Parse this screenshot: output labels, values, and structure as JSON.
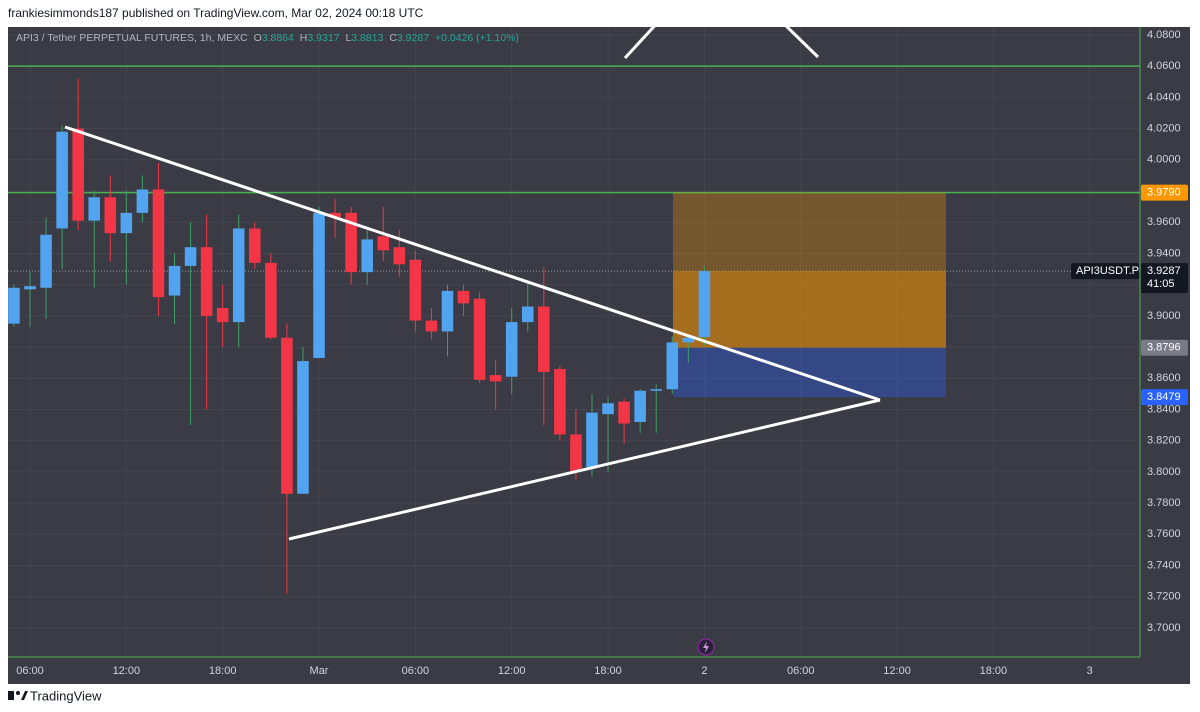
{
  "published": "frankiesimmonds187 published on TradingView.com, Mar 02, 2024 00:18 UTC",
  "footer": "TradingView",
  "chart_data": {
    "type": "candlestick",
    "symbol": "API3 / Tether PERPETUAL FUTURES, 1h, MEXC",
    "ohlc_labels": [
      "O",
      "H",
      "L",
      "C"
    ],
    "change": "+0.0426 (+1.10%)",
    "x": [
      5,
      6,
      7,
      8,
      9,
      10,
      11,
      12,
      13,
      14,
      15,
      16,
      17,
      18,
      19,
      20,
      21,
      22,
      23,
      24,
      25,
      26,
      27,
      28,
      29,
      30,
      31,
      32,
      33,
      34,
      35,
      36,
      37,
      38,
      39,
      40,
      41,
      42,
      43,
      44,
      45,
      46,
      47,
      48
    ],
    "open": [
      3.895,
      3.917,
      3.918,
      3.956,
      4.02,
      3.961,
      3.976,
      3.953,
      3.966,
      3.981,
      3.913,
      3.932,
      3.944,
      3.905,
      3.896,
      3.956,
      3.934,
      3.886,
      3.786,
      3.873,
      3.966,
      3.966,
      3.928,
      3.951,
      3.944,
      3.936,
      3.897,
      3.89,
      3.916,
      3.911,
      3.862,
      3.861,
      3.896,
      3.906,
      3.866,
      3.824,
      3.803,
      3.837,
      3.845,
      3.832,
      3.852,
      3.853,
      3.883,
      3.8864
    ],
    "high": [
      3.92,
      3.928,
      3.963,
      4.022,
      4.052,
      3.98,
      3.99,
      3.98,
      3.99,
      3.998,
      3.94,
      3.96,
      3.965,
      3.92,
      3.965,
      3.96,
      3.94,
      3.895,
      3.88,
      3.97,
      3.975,
      3.97,
      3.955,
      3.97,
      3.955,
      3.942,
      3.905,
      3.92,
      3.92,
      3.915,
      3.872,
      3.905,
      3.923,
      3.931,
      3.868,
      3.84,
      3.85,
      3.848,
      3.847,
      3.853,
      3.856,
      3.887,
      3.888,
      3.9317
    ],
    "low": [
      3.893,
      3.893,
      3.898,
      3.93,
      3.955,
      3.918,
      3.935,
      3.92,
      3.96,
      3.9,
      3.895,
      3.83,
      3.84,
      3.88,
      3.88,
      3.93,
      3.885,
      3.722,
      3.786,
      3.873,
      3.95,
      3.92,
      3.92,
      3.935,
      3.925,
      3.89,
      3.885,
      3.874,
      3.9,
      3.857,
      3.84,
      3.85,
      3.89,
      3.83,
      3.82,
      3.795,
      3.797,
      3.8,
      3.818,
      3.825,
      3.825,
      3.85,
      3.87,
      3.8813
    ],
    "close": [
      3.918,
      3.919,
      3.952,
      4.018,
      3.961,
      3.976,
      3.953,
      3.966,
      3.981,
      3.912,
      3.932,
      3.944,
      3.9,
      3.896,
      3.956,
      3.934,
      3.886,
      3.786,
      3.871,
      3.966,
      3.963,
      3.928,
      3.949,
      3.942,
      3.933,
      3.897,
      3.89,
      3.916,
      3.908,
      3.859,
      3.858,
      3.896,
      3.906,
      3.864,
      3.824,
      3.8,
      3.838,
      3.844,
      3.831,
      3.852,
      3.853,
      3.883,
      3.886,
      3.9287
    ],
    "up_color": "#52a3f0",
    "down_color": "#f23645",
    "wick_up_color": "#3f9e6a",
    "wick_down_color": "#f23645",
    "xlim": [
      4.63,
      75.13
    ],
    "ylim": [
      3.6814,
      4.0851
    ],
    "xticks": [
      {
        "value": 6,
        "label": "06:00"
      },
      {
        "value": 12,
        "label": "12:00"
      },
      {
        "value": 18,
        "label": "18:00"
      },
      {
        "value": 24,
        "label": "Mar"
      },
      {
        "value": 30,
        "label": "06:00"
      },
      {
        "value": 36,
        "label": "12:00"
      },
      {
        "value": 42,
        "label": "18:00"
      },
      {
        "value": 48,
        "label": "2"
      },
      {
        "value": 54,
        "label": "06:00"
      },
      {
        "value": 60,
        "label": "12:00"
      },
      {
        "value": 66,
        "label": "18:00"
      },
      {
        "value": 72,
        "label": "3"
      }
    ],
    "yticks": [
      {
        "value": 4.08,
        "label": "4.0800"
      },
      {
        "value": 4.06,
        "label": "4.0600"
      },
      {
        "value": 4.04,
        "label": "4.0400"
      },
      {
        "value": 4.02,
        "label": "4.0200"
      },
      {
        "value": 4.0,
        "label": "4.0000"
      },
      {
        "value": 3.98,
        "label": "3.9800"
      },
      {
        "value": 3.96,
        "label": "3.9600"
      },
      {
        "value": 3.94,
        "label": "3.9400"
      },
      {
        "value": 3.92,
        "label": "3.9200"
      },
      {
        "value": 3.9,
        "label": "3.9000"
      },
      {
        "value": 3.88,
        "label": "3.8800"
      },
      {
        "value": 3.86,
        "label": "3.8600"
      },
      {
        "value": 3.84,
        "label": "3.8400"
      },
      {
        "value": 3.82,
        "label": "3.8200"
      },
      {
        "value": 3.8,
        "label": "3.8000"
      },
      {
        "value": 3.78,
        "label": "3.7800"
      },
      {
        "value": 3.76,
        "label": "3.7600"
      },
      {
        "value": 3.74,
        "label": "3.7400"
      },
      {
        "value": 3.72,
        "label": "3.7200"
      },
      {
        "value": 3.7,
        "label": "3.7000"
      }
    ],
    "grid": true,
    "hlines": [
      4.06,
      3.979
    ],
    "hline_color": "#4caf50",
    "position": {
      "target": {
        "value": 3.979,
        "label": "3.9790",
        "color": "#ff9800"
      },
      "entry": {
        "value": 3.8796,
        "label": "3.8796",
        "color": "#787b86"
      },
      "stop": {
        "value": 3.8479,
        "label": "3.8479",
        "color": "#2962ff"
      }
    },
    "last_price": {
      "value": 3.9287,
      "label": "3.9287",
      "symbol": "API3USDT.P",
      "countdown": "41:05"
    }
  }
}
